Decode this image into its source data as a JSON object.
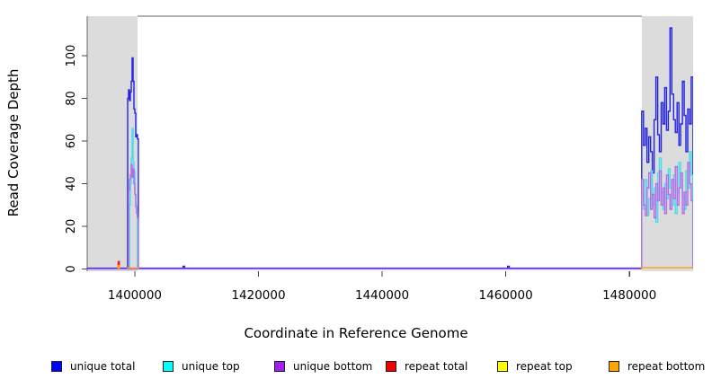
{
  "figure": {
    "xlabel": "Coordinate in Reference Genome",
    "ylabel": "Read Coverage Depth"
  },
  "legend": {
    "items": [
      {
        "label": "unique total",
        "color": "#0000FF"
      },
      {
        "label": "unique top",
        "color": "#00FFFF"
      },
      {
        "label": "unique bottom",
        "color": "#A020F0"
      },
      {
        "label": "repeat total",
        "color": "#EE0000"
      },
      {
        "label": "repeat top",
        "color": "#FFFF00"
      },
      {
        "label": "repeat bottom",
        "color": "#FFA500"
      }
    ]
  },
  "chart_data": {
    "type": "line",
    "subtype": "step-coverage",
    "title": "",
    "xlabel": "Coordinate in Reference Genome",
    "ylabel": "Read Coverage Depth",
    "xlim": [
      1392300,
      1490300
    ],
    "ylim": [
      0,
      118.5
    ],
    "x_ticks": [
      1400000,
      1420000,
      1440000,
      1460000,
      1480000
    ],
    "y_ticks": [
      0,
      20,
      40,
      60,
      80,
      100
    ],
    "grid": false,
    "legend_position": "bottom",
    "shading_color": "#DCDCDC",
    "background_shading": [
      {
        "x0": 1392300,
        "x1": 1400450
      },
      {
        "x0": 1481990,
        "x1": 1490300
      }
    ],
    "series": [
      {
        "name": "unique total",
        "color": "#2222DF",
        "segments": [
          {
            "x0": 1392400,
            "dx": 89600,
            "values": [
              0.4
            ]
          },
          {
            "x0": 1398840,
            "dx": 145,
            "values": [
              80,
              84,
              79,
              83,
              88,
              99,
              88,
              75,
              73,
              62,
              63,
              61
            ]
          },
          {
            "x0": 1407800,
            "dx": 260,
            "values": [
              1.3
            ]
          },
          {
            "x0": 1460300,
            "dx": 260,
            "values": [
              1.3
            ]
          },
          {
            "x0": 1481990,
            "dx": 286,
            "values": [
              74,
              58,
              66,
              50,
              62,
              55,
              45,
              70,
              90,
              63,
              55,
              78,
              68,
              85,
              65,
              74,
              113,
              82,
              70,
              64,
              78,
              58,
              68,
              88,
              72,
              55,
              75,
              68,
              90
            ]
          }
        ]
      },
      {
        "name": "unique top",
        "color": "#45DFE8",
        "segments": [
          {
            "x0": 1398840,
            "dx": 145,
            "values": [
              0,
              0,
              30,
              40,
              52,
              66,
              50,
              46,
              35,
              30,
              26,
              0
            ]
          },
          {
            "x0": 1481990,
            "dx": 286,
            "values": [
              35,
              28,
              42,
              25,
              33,
              46,
              30,
              38,
              22,
              45,
              52,
              36,
              28,
              40,
              33,
              47,
              38,
              30,
              44,
              26,
              36,
              50,
              42,
              34,
              28,
              46,
              38,
              55,
              44
            ]
          }
        ]
      },
      {
        "name": "unique bottom",
        "color": "#AF6EE8",
        "segments": [
          {
            "x0": 1392400,
            "dx": 89600,
            "values": [
              0
            ]
          },
          {
            "x0": 1398840,
            "dx": 145,
            "values": [
              0,
              37,
              42,
              44,
              49,
              43,
              47,
              40,
              35,
              29,
              26,
              24
            ]
          },
          {
            "x0": 1481990,
            "dx": 286,
            "values": [
              42,
              30,
              25,
              38,
              45,
              28,
              35,
              24,
              40,
              32,
              46,
              30,
              38,
              26,
              44,
              35,
              28,
              42,
              33,
              48,
              30,
              38,
              45,
              26,
              36,
              30,
              50,
              40,
              32
            ]
          }
        ]
      },
      {
        "name": "repeat total",
        "color": "#E82222",
        "segments": [
          {
            "x0": 1397300,
            "dx": 210,
            "values": [
              3.5
            ]
          }
        ]
      },
      {
        "name": "repeat top",
        "color": "#FFFF00",
        "segments": []
      },
      {
        "name": "repeat bottom",
        "color": "#FF9912",
        "segments": [
          {
            "x0": 1397300,
            "dx": 210,
            "values": [
              1.6
            ]
          },
          {
            "x0": 1398840,
            "dx": 1740,
            "values": [
              0.5
            ]
          },
          {
            "x0": 1481990,
            "dx": 8290,
            "values": [
              0.6
            ]
          }
        ]
      }
    ]
  }
}
